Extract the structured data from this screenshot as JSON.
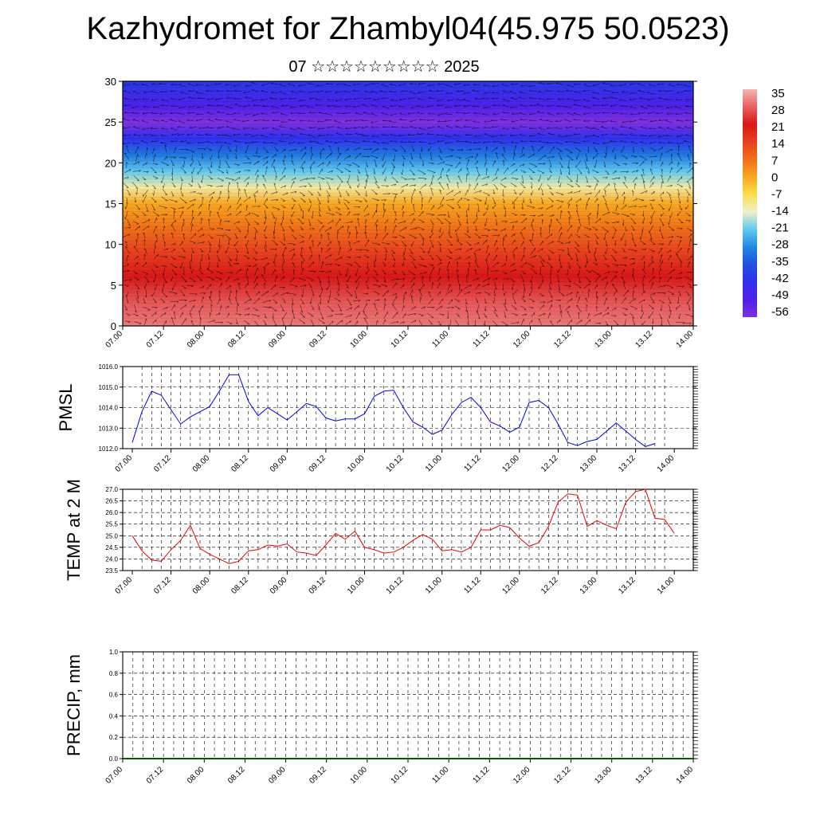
{
  "title": "Kazhydromet for Zhambyl04(45.975 50.0523)",
  "subtitle": "07 ☆☆☆☆☆☆☆☆☆ 2025",
  "chart_data": [
    {
      "type": "heatmap",
      "xlim": [
        0,
        14
      ],
      "ylim": [
        0,
        30
      ],
      "x_tick_labels": [
        "07.00",
        "07.12",
        "08.00",
        "08.12",
        "09.00",
        "09.12",
        "10.00",
        "10.12",
        "11.00",
        "11.12",
        "12.00",
        "12.12",
        "13.00",
        "13.12",
        "14.00"
      ],
      "y_ticks": [
        0,
        5,
        10,
        15,
        20,
        25,
        30
      ],
      "colorbar_labels": [
        "35",
        "28",
        "21",
        "14",
        "7",
        "0",
        "-7",
        "-14",
        "-21",
        "-28",
        "-35",
        "-42",
        "-49",
        "-56"
      ],
      "colorbar_colors": [
        "#f2b6b6",
        "#e86060",
        "#d81818",
        "#e84020",
        "#f07018",
        "#f8a820",
        "#f8e050",
        "#f0f0c8",
        "#60c8f0",
        "#2088e0",
        "#2050e0",
        "#3030f0",
        "#5020e8",
        "#8030e0"
      ],
      "profile_levels": [
        0,
        3,
        6,
        9,
        12,
        15,
        17,
        19,
        21,
        23,
        25,
        27,
        30
      ],
      "profile_values": [
        30,
        27,
        21,
        14,
        7,
        0,
        -12,
        -21,
        -30,
        -42,
        -56,
        -48,
        -40
      ],
      "overlay": "wind vectors"
    },
    {
      "type": "line",
      "ylabel": "PMSL",
      "ylim": [
        1012.0,
        1016.0
      ],
      "y_tick_labels": [
        "1016.0",
        "1015.0",
        "1014.0",
        "1013.0",
        "1012.0"
      ],
      "x_tick_labels": [
        "07.00",
        "07.12",
        "08.00",
        "08.12",
        "09.00",
        "09.12",
        "10.00",
        "10.12",
        "11.00",
        "11.12",
        "12.00",
        "12.12",
        "13.00",
        "13.12",
        "14.00"
      ],
      "x": [
        0,
        0.25,
        0.5,
        0.75,
        1,
        1.25,
        1.5,
        1.75,
        2,
        2.25,
        2.5,
        2.75,
        3,
        3.25,
        3.5,
        3.75,
        4,
        4.25,
        4.5,
        4.75,
        5,
        5.25,
        5.5,
        5.75,
        6,
        6.25,
        6.5,
        6.75,
        7,
        7.25,
        7.5,
        7.75,
        8,
        8.25,
        8.5,
        8.75,
        9,
        9.25,
        9.5,
        9.75,
        10,
        10.25,
        10.5,
        10.75,
        11,
        11.25,
        11.5,
        11.75,
        12,
        12.25,
        12.5,
        12.75,
        13,
        13.25,
        13.5
      ],
      "color": "#0000ee",
      "values": [
        1012.3,
        1013.8,
        1014.8,
        1014.6,
        1013.9,
        1013.2,
        1013.55,
        1013.8,
        1014.05,
        1014.8,
        1015.6,
        1015.6,
        1014.3,
        1013.6,
        1014.0,
        1013.7,
        1013.4,
        1013.8,
        1014.2,
        1014.05,
        1013.5,
        1013.35,
        1013.45,
        1013.45,
        1013.7,
        1014.55,
        1014.8,
        1014.85,
        1014.0,
        1013.3,
        1013.05,
        1012.7,
        1012.9,
        1013.65,
        1014.25,
        1014.5,
        1014.0,
        1013.3,
        1013.1,
        1012.8,
        1013.05,
        1014.25,
        1014.35,
        1014.0,
        1013.2,
        1012.3,
        1012.15,
        1012.35,
        1012.45,
        1012.85,
        1013.25,
        1012.85,
        1012.45,
        1012.1,
        1012.25
      ]
    },
    {
      "type": "line",
      "ylabel": "TEMP at 2 M",
      "ylim": [
        23.5,
        27.0
      ],
      "y_tick_labels": [
        "27.0",
        "26.5",
        "26.0",
        "25.5",
        "25.0",
        "24.5",
        "24.0",
        "23.5"
      ],
      "x_tick_labels": [
        "07.00",
        "07.12",
        "08.00",
        "08.12",
        "09.00",
        "09.12",
        "10.00",
        "10.12",
        "11.00",
        "11.12",
        "12.00",
        "12.12",
        "13.00",
        "13.12",
        "14.00"
      ],
      "x": [
        0,
        0.25,
        0.5,
        0.75,
        1,
        1.25,
        1.5,
        1.75,
        2,
        2.25,
        2.5,
        2.75,
        3,
        3.25,
        3.5,
        3.75,
        4,
        4.25,
        4.5,
        4.75,
        5,
        5.25,
        5.5,
        5.75,
        6,
        6.25,
        6.5,
        6.75,
        7,
        7.25,
        7.5,
        7.75,
        8,
        8.25,
        8.5,
        8.75,
        9,
        9.25,
        9.5,
        9.75,
        10,
        10.25,
        10.5,
        10.75,
        11,
        11.25,
        11.5,
        11.75,
        12,
        12.25,
        12.5,
        12.75,
        13,
        13.25,
        13.5,
        13.75,
        14
      ],
      "color": "#ee0000",
      "values": [
        25.0,
        24.35,
        23.95,
        23.9,
        24.4,
        24.8,
        25.45,
        24.45,
        24.2,
        24.0,
        23.8,
        23.9,
        24.35,
        24.4,
        24.6,
        24.55,
        24.65,
        24.3,
        24.25,
        24.15,
        24.6,
        25.1,
        24.85,
        25.2,
        24.5,
        24.4,
        24.25,
        24.3,
        24.5,
        24.8,
        25.05,
        24.85,
        24.35,
        24.4,
        24.3,
        24.5,
        25.25,
        25.25,
        25.45,
        25.35,
        24.9,
        24.55,
        24.7,
        25.4,
        26.45,
        26.8,
        26.75,
        25.4,
        25.65,
        25.45,
        25.3,
        26.45,
        26.9,
        27.0,
        25.75,
        25.7,
        25.1
      ]
    },
    {
      "type": "line",
      "ylabel": "PRECIP, mm",
      "ylim": [
        0.0,
        1.0
      ],
      "y_tick_labels": [
        "1.0",
        "0.8",
        "0.6",
        "0.4",
        "0.2",
        "0.0"
      ],
      "x_tick_labels": [
        "07.00",
        "07.12",
        "08.00",
        "08.12",
        "09.00",
        "09.12",
        "10.00",
        "10.12",
        "11.00",
        "11.12",
        "12.00",
        "12.12",
        "13.00",
        "13.12",
        "14.00"
      ],
      "color": "#006000",
      "x": [
        0,
        14
      ],
      "values": [
        0,
        0
      ]
    }
  ]
}
